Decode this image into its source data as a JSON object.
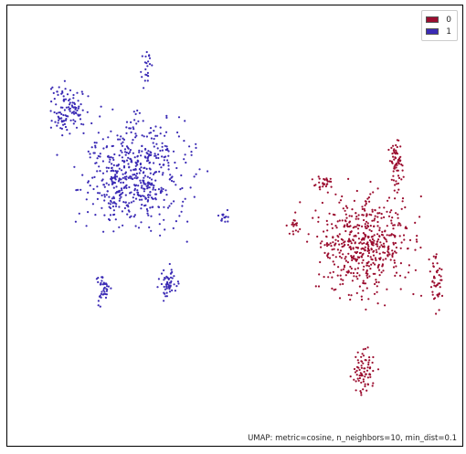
{
  "chart_data": {
    "type": "scatter",
    "title": "",
    "xlabel": "",
    "ylabel": "",
    "annotation": "UMAP: metric=cosine, n_neighbors=10, min_dist=0.1",
    "grid": false,
    "legend_placement": "top-right",
    "series": [
      {
        "name": "0",
        "color": "#9b0d2f",
        "clusters": [
          {
            "cx": 390,
            "cy": 260,
            "rx": 85,
            "ry": 90,
            "n": 520
          },
          {
            "cx": 425,
            "cy": 170,
            "rx": 14,
            "ry": 50,
            "n": 60
          },
          {
            "cx": 345,
            "cy": 195,
            "rx": 14,
            "ry": 16,
            "n": 30
          },
          {
            "cx": 390,
            "cy": 400,
            "rx": 20,
            "ry": 45,
            "n": 75
          },
          {
            "cx": 470,
            "cy": 300,
            "rx": 12,
            "ry": 50,
            "n": 45
          },
          {
            "cx": 315,
            "cy": 240,
            "rx": 14,
            "ry": 18,
            "n": 18
          }
        ]
      },
      {
        "name": "1",
        "color": "#3b2bb5",
        "clusters": [
          {
            "cx": 140,
            "cy": 185,
            "rx": 95,
            "ry": 95,
            "n": 560
          },
          {
            "cx": 65,
            "cy": 115,
            "rx": 32,
            "ry": 45,
            "n": 110
          },
          {
            "cx": 152,
            "cy": 70,
            "rx": 8,
            "ry": 38,
            "n": 22
          },
          {
            "cx": 105,
            "cy": 310,
            "rx": 14,
            "ry": 30,
            "n": 40
          },
          {
            "cx": 175,
            "cy": 305,
            "rx": 17,
            "ry": 28,
            "n": 55
          },
          {
            "cx": 235,
            "cy": 232,
            "rx": 15,
            "ry": 12,
            "n": 15
          }
        ]
      }
    ]
  }
}
